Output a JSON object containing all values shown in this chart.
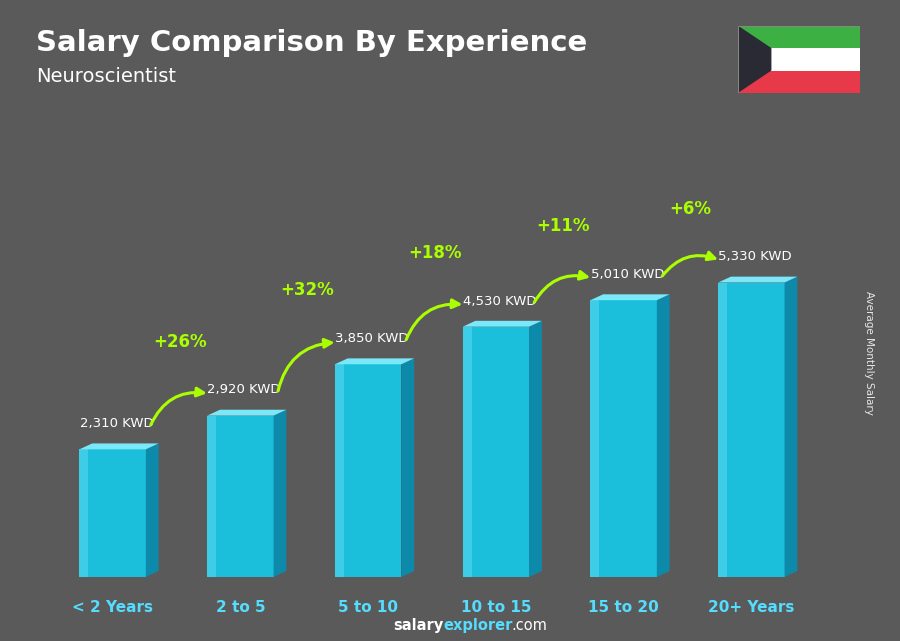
{
  "title": "Salary Comparison By Experience",
  "subtitle": "Neuroscientist",
  "categories": [
    "< 2 Years",
    "2 to 5",
    "5 to 10",
    "10 to 15",
    "15 to 20",
    "20+ Years"
  ],
  "values": [
    2310,
    2920,
    3850,
    4530,
    5010,
    5330
  ],
  "labels": [
    "2,310 KWD",
    "2,920 KWD",
    "3,850 KWD",
    "4,530 KWD",
    "5,010 KWD",
    "5,330 KWD"
  ],
  "pct_changes": [
    "+26%",
    "+32%",
    "+18%",
    "+11%",
    "+6%"
  ],
  "front_color": "#1bbfdc",
  "side_color": "#0d8aaa",
  "top_color": "#7ae8f8",
  "highlight_color": "#55d8f0",
  "background_color": "#5a5a5a",
  "title_color": "#ffffff",
  "label_color": "#ffffff",
  "pct_color": "#aaff00",
  "xlabel_color": "#55ddff",
  "ylabel_text": "Average Monthly Salary",
  "footer_salary_color": "#ffffff",
  "footer_explorer_color": "#55ddff",
  "footer_com_color": "#ffffff"
}
